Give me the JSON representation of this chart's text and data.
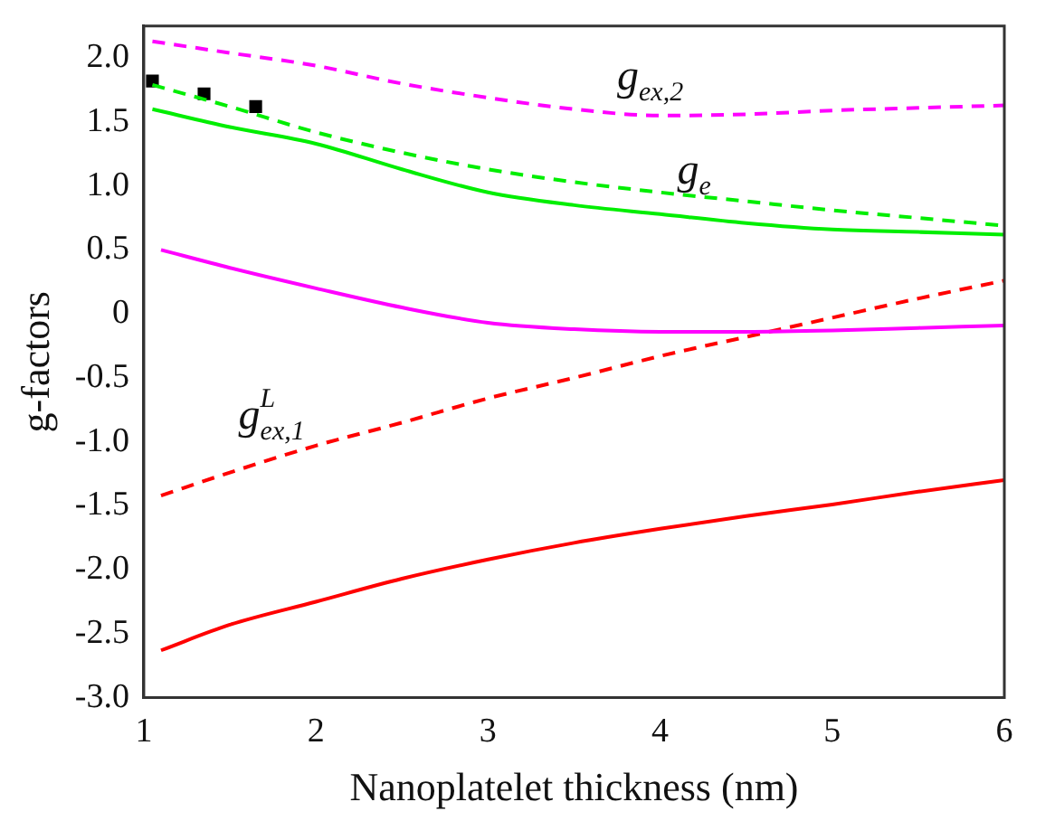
{
  "chart_data": {
    "type": "line",
    "xlabel": "Nanoplatelet thickness (nm)",
    "ylabel": "g-factors",
    "xlim": [
      1,
      6
    ],
    "xticks": [
      1,
      2,
      3,
      4,
      5,
      6
    ],
    "ylim": [
      -3,
      2.25
    ],
    "yticks": [
      {
        "value": 2,
        "label": "2.0"
      },
      1.5,
      {
        "value": 1,
        "label": "1.0"
      },
      0.5,
      0,
      {
        "value": -0.5,
        "label": "-0.5"
      },
      {
        "value": -1,
        "label": "-1.0"
      },
      {
        "value": -1.5,
        "label": "-1.5"
      },
      {
        "value": -2,
        "label": "-2.0"
      },
      {
        "value": -2.5,
        "label": "-2.5"
      },
      {
        "value": -3,
        "label": "-3.0"
      }
    ],
    "grid": false,
    "legend": false,
    "series": [
      {
        "color": "#ff00ff",
        "line_style": "dashed",
        "marker": "none",
        "x": [
          1.05,
          1.5,
          2,
          2.5,
          3,
          3.5,
          4,
          4.5,
          5,
          5.5,
          6
        ],
        "values": [
          2.13,
          2.04,
          1.94,
          1.8,
          1.69,
          1.6,
          1.55,
          1.56,
          1.59,
          1.61,
          1.63
        ]
      },
      {
        "color": "#00ee00",
        "line_style": "dashed",
        "marker": "none",
        "x": [
          1.05,
          1.5,
          2,
          2.5,
          3,
          3.5,
          4,
          4.5,
          5,
          5.5,
          6
        ],
        "values": [
          1.79,
          1.62,
          1.42,
          1.26,
          1.13,
          1.03,
          0.95,
          0.88,
          0.81,
          0.75,
          0.69
        ]
      },
      {
        "color": "#00ee00",
        "line_style": "solid",
        "marker": "none",
        "x": [
          1.05,
          1.5,
          2,
          2.5,
          3,
          3.5,
          4,
          4.5,
          5,
          5.5,
          6
        ],
        "values": [
          1.6,
          1.46,
          1.33,
          1.13,
          0.95,
          0.85,
          0.78,
          0.71,
          0.66,
          0.64,
          0.62
        ]
      },
      {
        "color": "#ff00ff",
        "line_style": "solid",
        "marker": "none",
        "x": [
          1.1,
          1.5,
          2,
          2.5,
          3,
          3.5,
          4,
          4.5,
          5,
          5.5,
          6
        ],
        "values": [
          0.5,
          0.36,
          0.2,
          0.05,
          -0.07,
          -0.12,
          -0.14,
          -0.14,
          -0.13,
          -0.11,
          -0.09
        ]
      },
      {
        "color": "#ff0000",
        "line_style": "dashed",
        "marker": "none",
        "x": [
          1.1,
          1.5,
          2,
          2.5,
          3,
          3.5,
          4,
          4.5,
          5,
          5.5,
          6
        ],
        "values": [
          -1.42,
          -1.24,
          -1.03,
          -0.85,
          -0.66,
          -0.5,
          -0.33,
          -0.18,
          -0.03,
          0.12,
          0.26
        ]
      },
      {
        "color": "#ff0000",
        "line_style": "solid",
        "marker": "none",
        "x": [
          1.1,
          1.5,
          2,
          2.5,
          3,
          3.5,
          4,
          4.5,
          5,
          5.5,
          6
        ],
        "values": [
          -2.63,
          -2.43,
          -2.25,
          -2.07,
          -1.92,
          -1.79,
          -1.68,
          -1.58,
          -1.49,
          -1.39,
          -1.3
        ]
      },
      {
        "type": "scatter",
        "color": "#000000",
        "marker": "square",
        "x": [
          1.05,
          1.35,
          1.65
        ],
        "values": [
          1.82,
          1.72,
          1.62
        ]
      }
    ],
    "annotations": [
      "g$_{ex,2}$",
      "g$_{e}$",
      "g$^{L}$$_{ex,1}$"
    ]
  }
}
